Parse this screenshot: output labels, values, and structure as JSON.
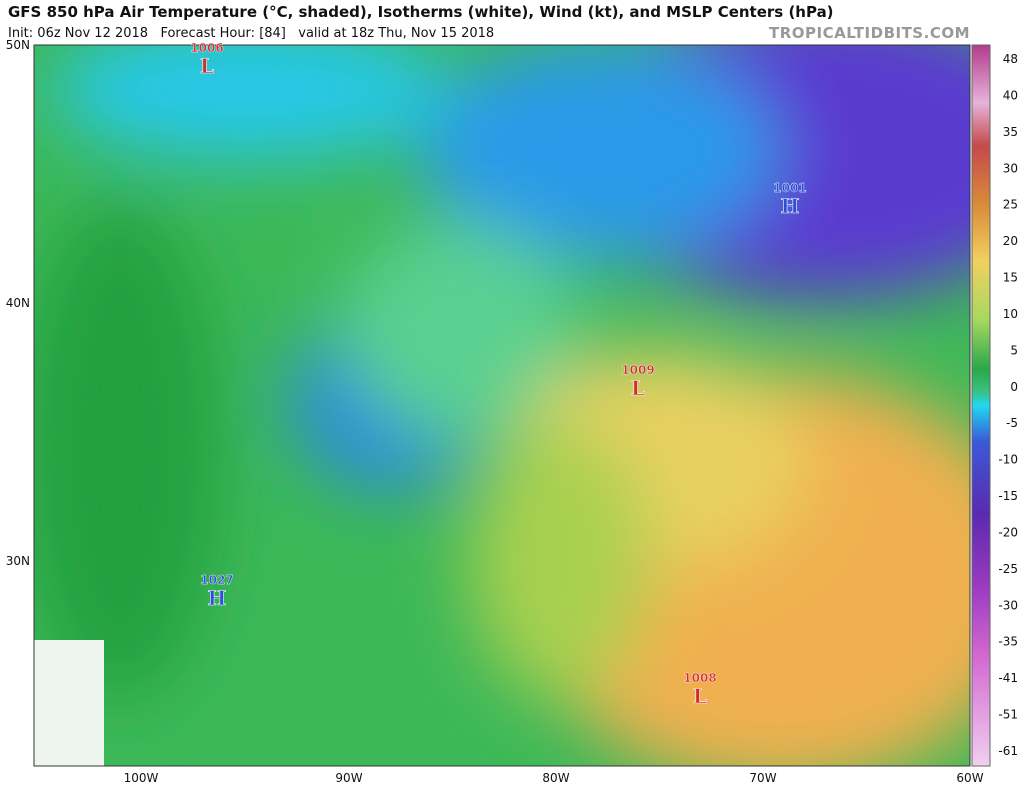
{
  "header": {
    "title": "GFS 850 hPa Air Temperature (°C, shaded), Isotherms (white), Wind (kt), and MSLP Centers (hPa)",
    "subtitle": "Init: 06z Nov 12 2018   Forecast Hour: [84]   valid at 18z Thu, Nov 15 2018",
    "site": "TROPICALTIDBITS.COM"
  },
  "map": {
    "lat_labels": [
      "50N",
      "40N",
      "30N"
    ],
    "lon_labels": [
      "100W",
      "90W",
      "80W",
      "70W",
      "60W"
    ],
    "centers": [
      {
        "pressure": "1006",
        "letter": "L",
        "color": "#d42a2a"
      },
      {
        "pressure": "1001",
        "letter": "H",
        "color": "#2a4fd4"
      },
      {
        "pressure": "1009",
        "letter": "L",
        "color": "#d42a2a"
      },
      {
        "pressure": "1027",
        "letter": "H",
        "color": "#2a4fd4"
      },
      {
        "pressure": "1008",
        "letter": "L",
        "color": "#d42a2a"
      }
    ]
  },
  "colorbar": {
    "labels": [
      "48",
      "40",
      "35",
      "30",
      "25",
      "20",
      "15",
      "10",
      "5",
      "0",
      "-5",
      "-10",
      "-15",
      "-20",
      "-25",
      "-30",
      "-35",
      "-41",
      "-51",
      "-61"
    ]
  }
}
